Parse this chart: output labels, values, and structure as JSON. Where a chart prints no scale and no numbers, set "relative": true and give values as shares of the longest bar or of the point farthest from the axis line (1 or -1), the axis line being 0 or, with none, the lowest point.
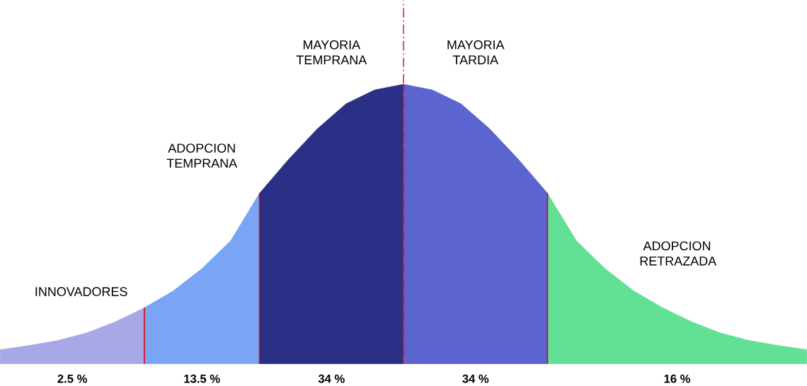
{
  "chart_data": {
    "type": "area",
    "relative": true,
    "categories": [
      null,
      null,
      null,
      null,
      null,
      null,
      null,
      null,
      null,
      null,
      null,
      null,
      null,
      null,
      null,
      null,
      null,
      null,
      null,
      null,
      null,
      null,
      null,
      null,
      null,
      null,
      null,
      null,
      null
    ],
    "series": [
      {
        "name": "INNOVADORES",
        "color": "#a8a8e6",
        "values": [
          0.05,
          0.065,
          0.083,
          0.11,
          0.15,
          0.2,
          null,
          null,
          null,
          null,
          null,
          null,
          null,
          null,
          null,
          null,
          null,
          null,
          null,
          null,
          null,
          null,
          null,
          null,
          null,
          null,
          null,
          null,
          null
        ]
      },
      {
        "name": "ADOPCION TEMPRANA",
        "color": "#7aa5f5",
        "values": [
          null,
          null,
          null,
          null,
          null,
          0.2,
          0.26,
          0.34,
          0.44,
          0.61,
          null,
          null,
          null,
          null,
          null,
          null,
          null,
          null,
          null,
          null,
          null,
          null,
          null,
          null,
          null,
          null,
          null,
          null,
          null
        ]
      },
      {
        "name": "MAYORIA TEMPRANA",
        "color": "#2b3087",
        "values": [
          null,
          null,
          null,
          null,
          null,
          null,
          null,
          null,
          null,
          0.61,
          0.73,
          0.84,
          0.93,
          0.98,
          1,
          null,
          null,
          null,
          null,
          null,
          null,
          null,
          null,
          null,
          null,
          null,
          null,
          null,
          null
        ]
      },
      {
        "name": "MAYORIA TARDIA",
        "color": "#5c65cf",
        "values": [
          null,
          null,
          null,
          null,
          null,
          null,
          null,
          null,
          null,
          null,
          null,
          null,
          null,
          null,
          1,
          0.98,
          0.93,
          0.84,
          0.73,
          0.61,
          null,
          null,
          null,
          null,
          null,
          null,
          null,
          null,
          null
        ]
      },
      {
        "name": "ADOPCION RETRAZADA",
        "color": "#62e096",
        "values": [
          null,
          null,
          null,
          null,
          null,
          null,
          null,
          null,
          null,
          null,
          null,
          null,
          null,
          null,
          null,
          null,
          null,
          null,
          null,
          0.61,
          0.44,
          0.34,
          0.26,
          0.2,
          0.15,
          0.11,
          0.083,
          0.065,
          0.05
        ]
      }
    ],
    "annotations": [
      "2.5 %",
      "13.5 %",
      "34 %",
      "34 %",
      "16 %"
    ]
  }
}
